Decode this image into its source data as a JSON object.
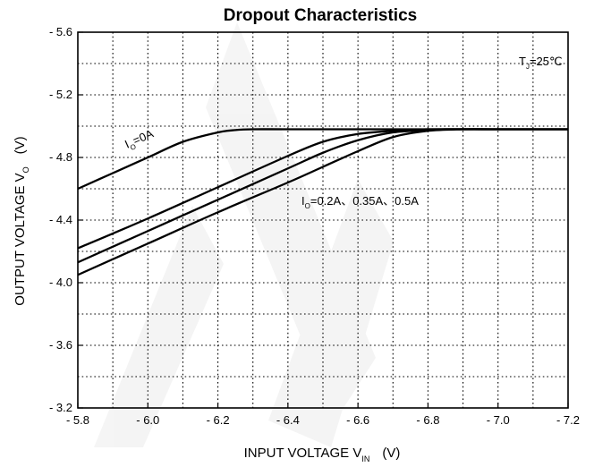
{
  "chart_data": {
    "type": "line",
    "title": "Dropout Characteristics",
    "xlabel": {
      "main": "INPUT VOLTAGE   V",
      "sub": "IN",
      "unit": "(V)"
    },
    "ylabel": {
      "main": "OUTPUT VOLTAGE   V",
      "sub": "O",
      "unit": "(V)"
    },
    "xlim": [
      -5.8,
      -7.2
    ],
    "ylim": [
      -3.2,
      -5.6
    ],
    "x_ticks": [
      "- 5.8",
      "- 6.0",
      "- 6.2",
      "- 6.4",
      "- 6.6",
      "- 6.8",
      "- 7.0",
      "- 7.2"
    ],
    "y_ticks": [
      "- 5.6",
      "- 5.2",
      "- 4.8",
      "- 4.4",
      "- 4.0",
      "- 3.6",
      "- 3.2"
    ],
    "grid": true,
    "annotations": {
      "temperature": {
        "main": "T",
        "sub": "J",
        "rest": "=25℃"
      },
      "curve_io0": {
        "main": "I",
        "sub": "O",
        "rest": "=0A"
      },
      "curves_loaded": {
        "main": "I",
        "sub": "O",
        "rest": "=0.2A、0.35A、0.5A"
      }
    },
    "series": [
      {
        "x": [
          -5.8,
          -5.9,
          -6.0,
          -6.1,
          -6.2,
          -6.25,
          -6.3,
          -6.4,
          -6.6,
          -7.0,
          -7.2
        ],
        "y": [
          -4.6,
          -4.7,
          -4.8,
          -4.9,
          -4.96,
          -4.975,
          -4.98,
          -4.98,
          -4.98,
          -4.98,
          -4.98
        ]
      },
      {
        "x": [
          -5.8,
          -6.0,
          -6.2,
          -6.4,
          -6.5,
          -6.6,
          -6.7,
          -6.8,
          -7.0,
          -7.2
        ],
        "y": [
          -4.22,
          -4.41,
          -4.61,
          -4.81,
          -4.9,
          -4.95,
          -4.97,
          -4.98,
          -4.98,
          -4.98
        ]
      },
      {
        "x": [
          -5.8,
          -6.0,
          -6.2,
          -6.4,
          -6.5,
          -6.6,
          -6.7,
          -6.8,
          -6.85,
          -7.0,
          -7.2
        ],
        "y": [
          -4.13,
          -4.33,
          -4.53,
          -4.73,
          -4.83,
          -4.91,
          -4.96,
          -4.975,
          -4.98,
          -4.98,
          -4.98
        ]
      },
      {
        "x": [
          -5.8,
          -6.0,
          -6.2,
          -6.4,
          -6.5,
          -6.6,
          -6.7,
          -6.8,
          -6.9,
          -7.0,
          -7.2
        ],
        "y": [
          -4.05,
          -4.25,
          -4.45,
          -4.64,
          -4.74,
          -4.84,
          -4.93,
          -4.97,
          -4.98,
          -4.98,
          -4.98
        ]
      }
    ]
  }
}
